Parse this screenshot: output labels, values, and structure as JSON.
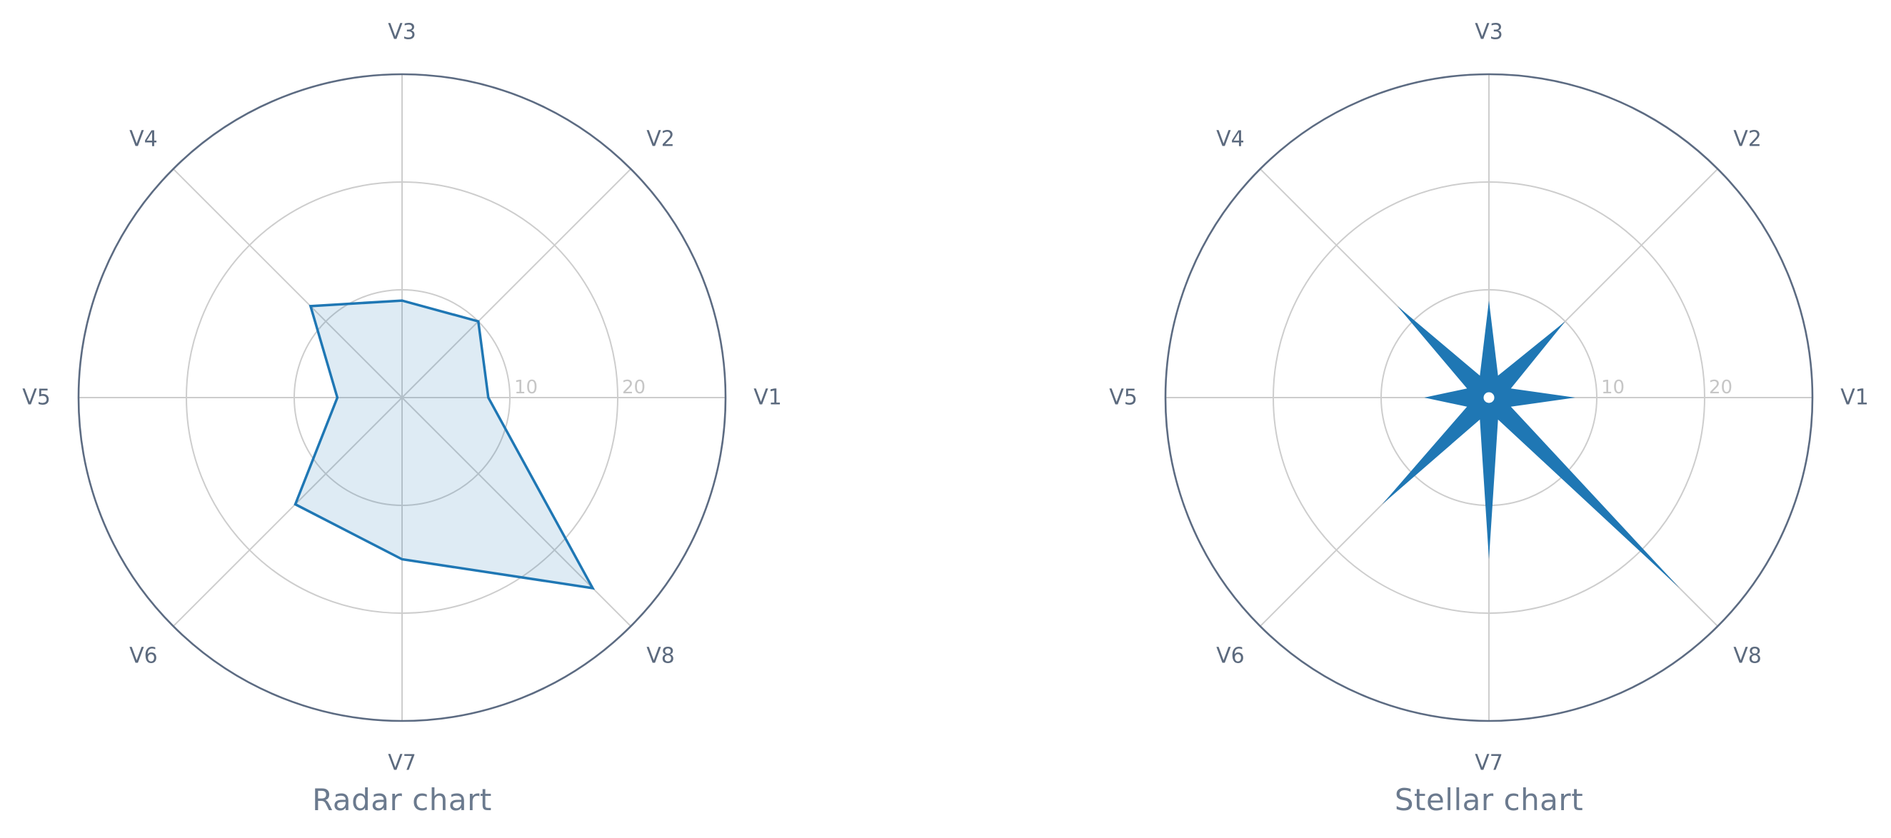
{
  "palette": {
    "series_blue": "#1f77b4",
    "radar_fill": "rgba(31,119,180,0.15)",
    "grid_line": "#cdcdcd",
    "outer_ring": "#5c6b82",
    "tick_label": "#c6c6c6",
    "axis_label": "#5c6a7e",
    "title_text": "#6b7a8e",
    "background": "#ffffff",
    "center_dot": "#ffffff"
  },
  "chart_data": [
    {
      "type": "radar",
      "title": "Radar chart",
      "categories": [
        "V1",
        "V2",
        "V3",
        "V4",
        "V5",
        "V6",
        "V7",
        "V8"
      ],
      "values": [
        8,
        10,
        9,
        12,
        6,
        14,
        15,
        25
      ],
      "r_axis": {
        "ticks": [
          10,
          20
        ],
        "tick_labels": [
          "10",
          "20"
        ],
        "max": 30
      },
      "angle_start_deg": 0,
      "direction": "counterclockwise",
      "grid": true,
      "legend": false,
      "line_width": 3.5,
      "filled": true
    },
    {
      "type": "stellar",
      "title": "Stellar chart",
      "categories": [
        "V1",
        "V2",
        "V3",
        "V4",
        "V5",
        "V6",
        "V7",
        "V8"
      ],
      "values": [
        8,
        10,
        9,
        12,
        6,
        14,
        15,
        25
      ],
      "r_axis": {
        "ticks": [
          10,
          20
        ],
        "tick_labels": [
          "10",
          "20"
        ],
        "max": 30
      },
      "angle_start_deg": 0,
      "direction": "counterclockwise",
      "grid": true,
      "legend": false,
      "inner_radius": 2.2,
      "center_dot": true,
      "filled": true
    }
  ]
}
